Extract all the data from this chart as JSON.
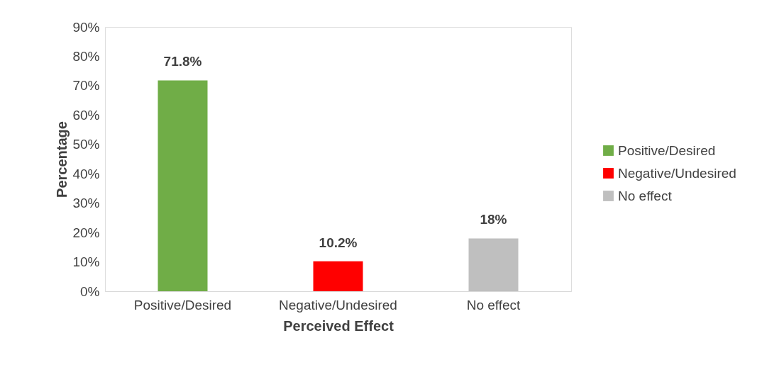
{
  "chart_data": {
    "type": "bar",
    "xlabel": "Perceived Effect",
    "ylabel": "Percentage",
    "categories": [
      "Positive/Desired",
      "Negative/Undesired",
      "No effect"
    ],
    "series": [
      {
        "name": "Positive/Desired",
        "color": "#70ad47",
        "values": [
          71.8,
          null,
          null
        ],
        "value_labels": [
          "71.8%",
          null,
          null
        ]
      },
      {
        "name": "Negative/Undesired",
        "color": "#ff0000",
        "values": [
          null,
          10.2,
          null
        ],
        "value_labels": [
          null,
          "10.2%",
          null
        ]
      },
      {
        "name": "No effect",
        "color": "#bfbfbf",
        "values": [
          null,
          null,
          18
        ],
        "value_labels": [
          null,
          null,
          "18%"
        ]
      }
    ],
    "ylim": [
      0,
      90
    ],
    "yticks": [
      {
        "value": 0,
        "label": "0%"
      },
      {
        "value": 10,
        "label": "10%"
      },
      {
        "value": 20,
        "label": "20%"
      },
      {
        "value": 30,
        "label": "30%"
      },
      {
        "value": 40,
        "label": "40%"
      },
      {
        "value": 50,
        "label": "50%"
      },
      {
        "value": 60,
        "label": "60%"
      },
      {
        "value": 70,
        "label": "70%"
      },
      {
        "value": 80,
        "label": "80%"
      },
      {
        "value": 90,
        "label": "90%"
      }
    ],
    "grid": false,
    "legend": "right"
  }
}
